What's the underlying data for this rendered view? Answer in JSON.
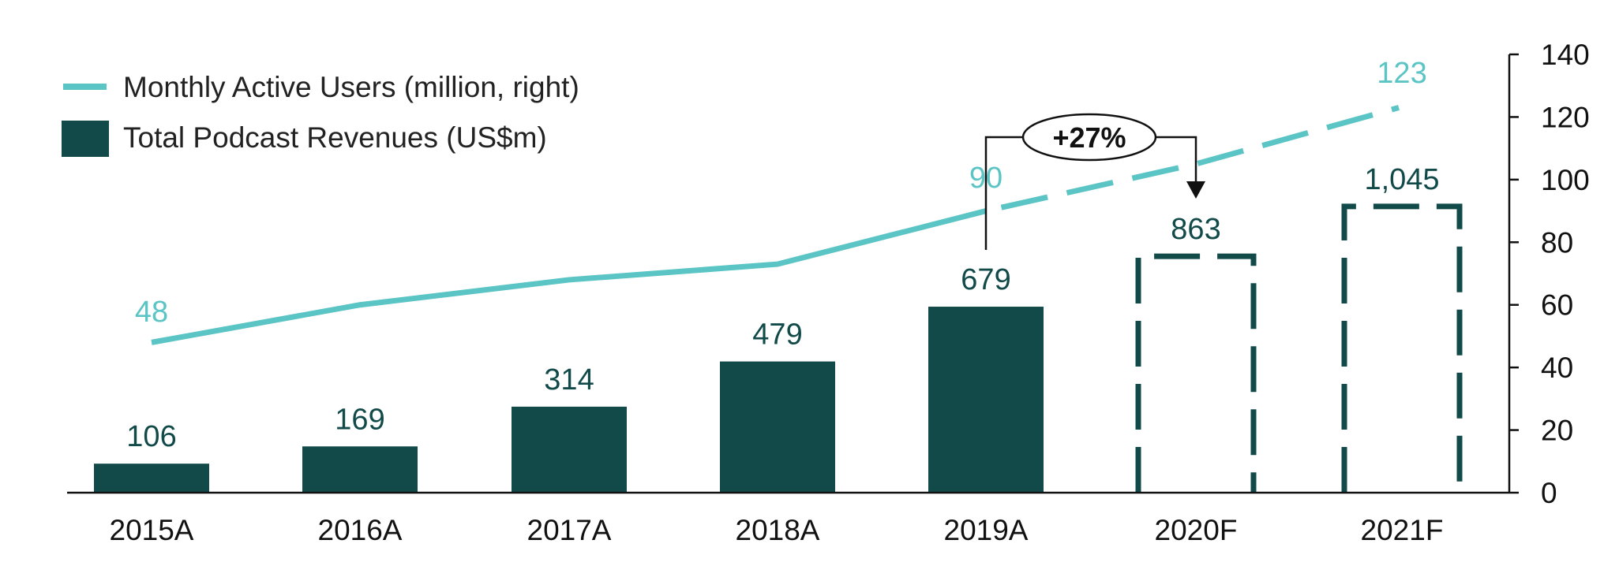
{
  "chart_data": {
    "type": "bar+line",
    "categories": [
      "2015A",
      "2016A",
      "2017A",
      "2018A",
      "2019A",
      "2020F",
      "2021F"
    ],
    "series": [
      {
        "name": "Total Podcast Revenues (US$m)",
        "type": "bar",
        "axis": "left",
        "values": [
          106,
          169,
          314,
          479,
          679,
          863,
          1045
        ],
        "labels": [
          "106",
          "169",
          "314",
          "479",
          "679",
          "863",
          "1,045"
        ],
        "forecast": [
          false,
          false,
          false,
          false,
          false,
          true,
          true
        ],
        "color": "#124a4a"
      },
      {
        "name": "Monthly Active Users (million, right)",
        "type": "line",
        "axis": "right",
        "values": [
          48,
          60,
          68,
          73,
          90,
          105,
          123
        ],
        "labels": {
          "0": "48",
          "4": "90",
          "6": "123"
        },
        "forecast_from_index": 4,
        "color": "#5bc4c4"
      }
    ],
    "left_axis": {
      "visible": false,
      "ylim": [
        0,
        1600
      ]
    },
    "right_axis": {
      "ylim": [
        0,
        140
      ],
      "ticks": [
        "0",
        "20",
        "40",
        "60",
        "80",
        "100",
        "120",
        "140"
      ]
    },
    "legend": {
      "placement": "top-left"
    },
    "grid": false,
    "annotation": {
      "text": "+27%",
      "from": "2019A",
      "to": "2020F"
    }
  }
}
